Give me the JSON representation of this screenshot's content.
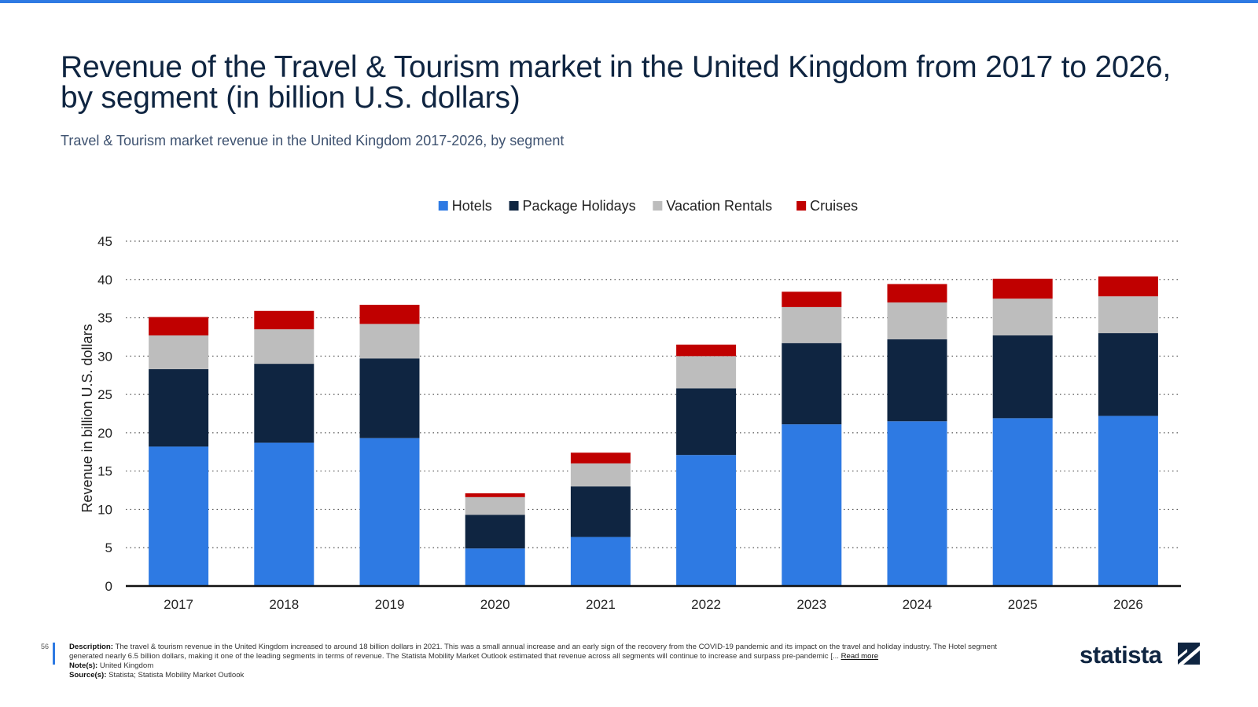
{
  "header": {
    "title": "Revenue of the Travel & Tourism market in the United Kingdom from 2017 to 2026, by segment (in billion U.S. dollars)",
    "subtitle": "Travel & Tourism market revenue in the United Kingdom 2017-2026, by segment"
  },
  "chart_data": {
    "type": "bar",
    "stacked": true,
    "title": "Revenue of the Travel & Tourism market in the United Kingdom from 2017 to 2026, by segment (in billion U.S. dollars)",
    "xlabel": "",
    "ylabel": "Revenue in billion U.S. dollars",
    "ylim": [
      0,
      45
    ],
    "yticks": [
      0,
      5,
      10,
      15,
      20,
      25,
      30,
      35,
      40,
      45
    ],
    "grid": true,
    "legend_position": "top-center",
    "categories": [
      "2017",
      "2018",
      "2019",
      "2020",
      "2021",
      "2022",
      "2023",
      "2024",
      "2025",
      "2026"
    ],
    "series": [
      {
        "name": "Hotels",
        "color": "#2e7ae3",
        "values": [
          18.2,
          18.7,
          19.3,
          4.9,
          6.4,
          17.1,
          21.1,
          21.5,
          21.9,
          22.2
        ]
      },
      {
        "name": "Package Holidays",
        "color": "#0f2541",
        "values": [
          10.1,
          10.3,
          10.4,
          4.4,
          6.6,
          8.7,
          10.6,
          10.7,
          10.8,
          10.8
        ]
      },
      {
        "name": "Vacation Rentals",
        "color": "#bdbdbd",
        "values": [
          4.4,
          4.5,
          4.5,
          2.3,
          3.0,
          4.2,
          4.7,
          4.8,
          4.8,
          4.8
        ]
      },
      {
        "name": "Cruises",
        "color": "#c00000",
        "values": [
          2.4,
          2.4,
          2.5,
          0.5,
          1.4,
          1.5,
          2.0,
          2.4,
          2.6,
          2.6
        ]
      }
    ]
  },
  "footer": {
    "page_number": "56",
    "description_label": "Description:",
    "description": "The travel & tourism revenue in the United Kingdom increased to around 18 billion dollars in 2021. This was a small annual increase and an early sign of the recovery from the COVID-19 pandemic and its impact on the travel and holiday industry. The Hotel segment generated nearly 6.5 billion dollars, making it one of the leading segments in terms of revenue. The Statista Mobility Market Outlook estimated that revenue across all segments will continue to increase and surpass pre-pandemic [...",
    "read_more": "Read more",
    "note_label": "Note(s):",
    "note": "United Kingdom",
    "source_label": "Source(s):",
    "source": "Statista; Statista Mobility Market Outlook",
    "logo_text": "statista"
  }
}
